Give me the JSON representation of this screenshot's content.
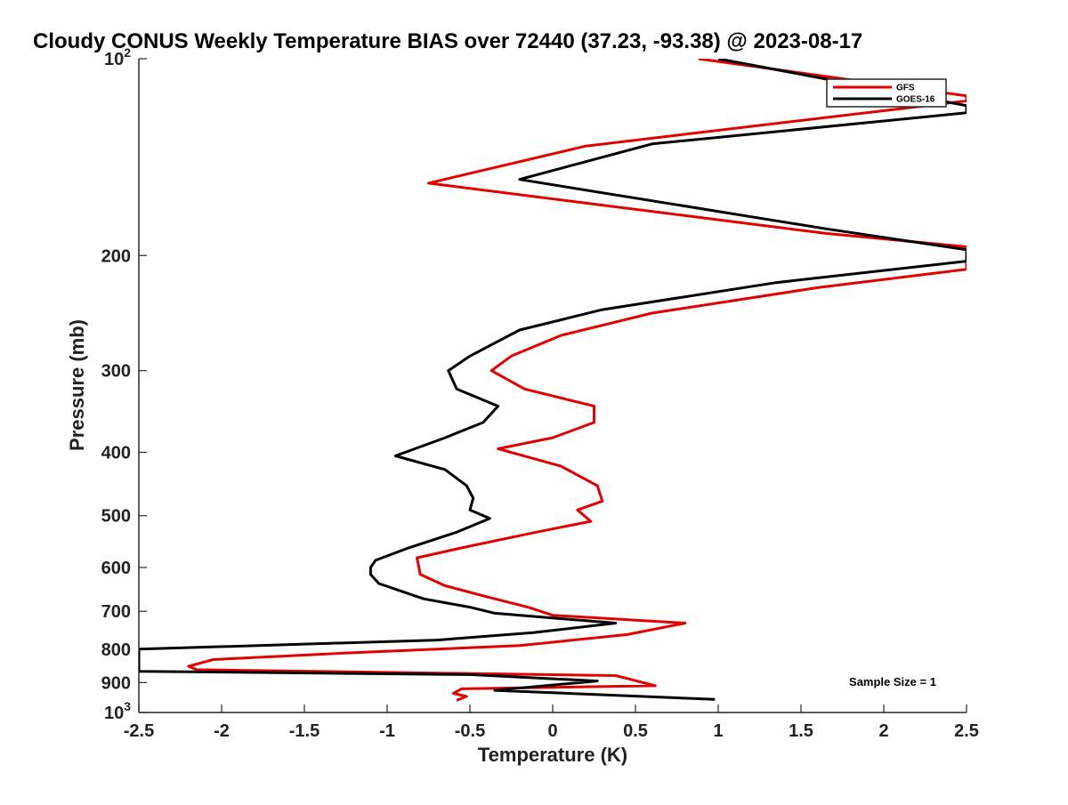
{
  "chart_data": {
    "type": "line",
    "title": "Cloudy CONUS Weekly Temperature BIAS over 72440 (37.23, -93.38) @ 2023-08-17",
    "xlabel": "Temperature (K)",
    "ylabel": "Pressure (mb)",
    "xlim": [
      -2.5,
      2.5
    ],
    "ylim": [
      100,
      1000
    ],
    "y_scale": "log",
    "y_reversed": true,
    "grid": false,
    "legend_position": "top-right",
    "x_ticks": [
      {
        "value": -2.5,
        "label": "-2.5"
      },
      {
        "value": -2,
        "label": "-2"
      },
      {
        "value": -1.5,
        "label": "-1.5"
      },
      {
        "value": -1,
        "label": "-1"
      },
      {
        "value": -0.5,
        "label": "-0.5"
      },
      {
        "value": 0,
        "label": "0"
      },
      {
        "value": 0.5,
        "label": "0.5"
      },
      {
        "value": 1,
        "label": "1"
      },
      {
        "value": 1.5,
        "label": "1.5"
      },
      {
        "value": 2,
        "label": "2"
      },
      {
        "value": 2.5,
        "label": "2.5"
      }
    ],
    "y_ticks": [
      {
        "value": 100,
        "label": "10",
        "exp": "2"
      },
      {
        "value": 200,
        "label": "200"
      },
      {
        "value": 300,
        "label": "300"
      },
      {
        "value": 400,
        "label": "400"
      },
      {
        "value": 500,
        "label": "500"
      },
      {
        "value": 600,
        "label": "600"
      },
      {
        "value": 700,
        "label": "700"
      },
      {
        "value": 800,
        "label": "800"
      },
      {
        "value": 900,
        "label": "900"
      },
      {
        "value": 1000,
        "label": "10",
        "exp": "3"
      }
    ],
    "annotation": "Sample Size = 1",
    "series": [
      {
        "name": "GFS",
        "color": "#e00000",
        "points": [
          [
            0.88,
            100
          ],
          [
            2.5,
            114
          ],
          [
            2.5,
            116
          ],
          [
            0.2,
            136
          ],
          [
            -0.75,
            155
          ],
          [
            1.65,
            185
          ],
          [
            2.5,
            194
          ],
          [
            2.5,
            210
          ],
          [
            1.6,
            224
          ],
          [
            0.6,
            245
          ],
          [
            0.05,
            265
          ],
          [
            -0.25,
            285
          ],
          [
            -0.37,
            300
          ],
          [
            -0.17,
            320
          ],
          [
            0.25,
            340
          ],
          [
            0.25,
            360
          ],
          [
            0.0,
            380
          ],
          [
            -0.33,
            395
          ],
          [
            0.05,
            420
          ],
          [
            0.27,
            450
          ],
          [
            0.3,
            475
          ],
          [
            0.15,
            490
          ],
          [
            0.23,
            510
          ],
          [
            -0.1,
            530
          ],
          [
            -0.55,
            560
          ],
          [
            -0.82,
            580
          ],
          [
            -0.8,
            615
          ],
          [
            -0.65,
            640
          ],
          [
            -0.4,
            665
          ],
          [
            -0.15,
            690
          ],
          [
            0.0,
            710
          ],
          [
            0.8,
            730
          ],
          [
            0.45,
            760
          ],
          [
            -0.2,
            790
          ],
          [
            -1.2,
            810
          ],
          [
            -2.05,
            830
          ],
          [
            -2.2,
            850
          ],
          [
            -2.15,
            860
          ],
          [
            0.38,
            878
          ],
          [
            0.62,
            910
          ],
          [
            -0.55,
            920
          ],
          [
            -0.6,
            935
          ],
          [
            -0.52,
            945
          ],
          [
            -0.58,
            958
          ]
        ]
      },
      {
        "name": "GOES-16",
        "color": "#000000",
        "points": [
          [
            1.0,
            100
          ],
          [
            2.5,
            118
          ],
          [
            2.5,
            121
          ],
          [
            0.6,
            135
          ],
          [
            -0.2,
            153
          ],
          [
            1.65,
            182
          ],
          [
            2.5,
            196
          ],
          [
            2.5,
            204
          ],
          [
            1.35,
            220
          ],
          [
            0.3,
            242
          ],
          [
            -0.2,
            260
          ],
          [
            -0.5,
            285
          ],
          [
            -0.63,
            300
          ],
          [
            -0.58,
            320
          ],
          [
            -0.33,
            340
          ],
          [
            -0.42,
            360
          ],
          [
            -0.65,
            380
          ],
          [
            -0.95,
            405
          ],
          [
            -0.65,
            425
          ],
          [
            -0.52,
            450
          ],
          [
            -0.48,
            470
          ],
          [
            -0.5,
            490
          ],
          [
            -0.38,
            505
          ],
          [
            -0.58,
            530
          ],
          [
            -0.87,
            560
          ],
          [
            -1.07,
            585
          ],
          [
            -1.1,
            600
          ],
          [
            -1.1,
            615
          ],
          [
            -1.05,
            635
          ],
          [
            -0.78,
            670
          ],
          [
            -0.5,
            690
          ],
          [
            -0.35,
            705
          ],
          [
            0.38,
            730
          ],
          [
            -0.12,
            755
          ],
          [
            -0.7,
            775
          ],
          [
            -2.5,
            800
          ],
          [
            -2.5,
            865
          ],
          [
            -0.5,
            875
          ],
          [
            0.27,
            895
          ],
          [
            -0.35,
            925
          ],
          [
            0.98,
            955
          ]
        ]
      }
    ]
  }
}
